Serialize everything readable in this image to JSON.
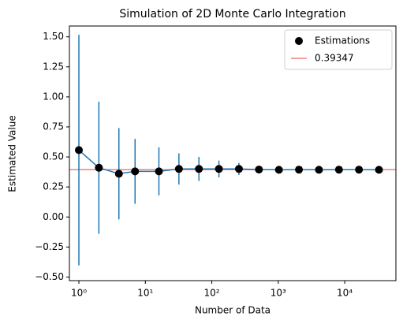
{
  "chart_data": {
    "type": "errorbar",
    "title": "Simulation of 2D Monte Carlo Integration",
    "xlabel": "Number of Data",
    "ylabel": "Estimated Value",
    "xscale": "log",
    "xlim": [
      0.72,
      58900
    ],
    "ylim": [
      -0.53,
      1.59
    ],
    "xticks": [
      {
        "value": 1,
        "label": "10⁰"
      },
      {
        "value": 10,
        "label": "10¹"
      },
      {
        "value": 100,
        "label": "10²"
      },
      {
        "value": 1000,
        "label": "10³"
      },
      {
        "value": 10000,
        "label": "10⁴"
      }
    ],
    "yticks": [
      {
        "value": -0.5,
        "label": "−0.50"
      },
      {
        "value": -0.25,
        "label": "−0.25"
      },
      {
        "value": 0,
        "label": "0.00"
      },
      {
        "value": 0.25,
        "label": "0.25"
      },
      {
        "value": 0.5,
        "label": "0.50"
      },
      {
        "value": 0.75,
        "label": "0.75"
      },
      {
        "value": 1,
        "label": "1.00"
      },
      {
        "value": 1.25,
        "label": "1.25"
      },
      {
        "value": 1.5,
        "label": "1.50"
      }
    ],
    "series": [
      {
        "name": "Estimations",
        "color": "#000000",
        "line_color": "#1f77b4",
        "x": [
          1,
          2,
          4,
          7,
          16,
          32,
          64,
          128,
          256,
          512,
          1024,
          2048,
          4096,
          8192,
          16384,
          32768
        ],
        "values": [
          0.557,
          0.41,
          0.36,
          0.38,
          0.38,
          0.4,
          0.4,
          0.4,
          0.4,
          0.395,
          0.393,
          0.394,
          0.393,
          0.394,
          0.394,
          0.393
        ],
        "errors": [
          0.96,
          0.55,
          0.38,
          0.27,
          0.2,
          0.13,
          0.1,
          0.07,
          0.05,
          0.03,
          0.02,
          0.015,
          0.01,
          0.007,
          0.005,
          0.004
        ]
      }
    ],
    "reference_line": {
      "value": 0.39347,
      "label": "0.39347",
      "color": "#f08080"
    },
    "legend": "upper right"
  }
}
